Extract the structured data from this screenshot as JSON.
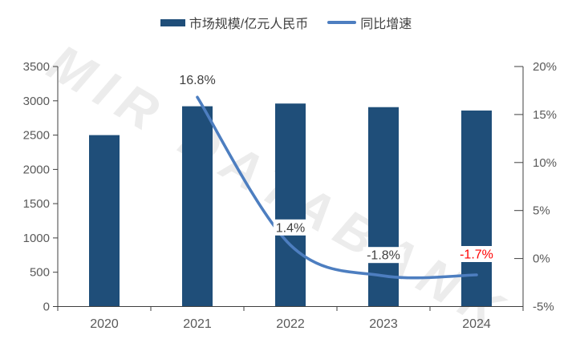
{
  "legend": {
    "bar_label": "市场规模/亿元人民币",
    "line_label": "同比增速"
  },
  "watermark": {
    "text": "MIR DATABANK"
  },
  "colors": {
    "bar": "#1F4E79",
    "line": "#4D7EC0",
    "axis_line": "#3F3F3F",
    "tick_label": "#595959",
    "data_label": "#404040",
    "negative_2024_label": "#FF0000",
    "label_background": "#FFFFFF"
  },
  "chart_data": {
    "type": "bar",
    "subtype": "bar-line-combo",
    "title": "",
    "categories": [
      "2020",
      "2021",
      "2022",
      "2023",
      "2024"
    ],
    "series": [
      {
        "name": "市场规模/亿元人民币",
        "type": "bar",
        "axis": "left",
        "values": [
          2500,
          2920,
          2960,
          2908,
          2858
        ],
        "color": "#1F4E79"
      },
      {
        "name": "同比增速",
        "type": "line",
        "axis": "right",
        "smooth": true,
        "values": [
          null,
          16.8,
          1.4,
          -1.8,
          -1.7
        ],
        "data_labels": [
          null,
          "16.8%",
          "1.4%",
          "-1.8%",
          "-1.7%"
        ],
        "data_label_colors": [
          null,
          "#404040",
          "#404040",
          "#404040",
          "#FF0000"
        ],
        "color": "#4D7EC0"
      }
    ],
    "left_axis": {
      "min": 0,
      "max": 3500,
      "step": 500,
      "tick_labels": [
        "0",
        "500",
        "1000",
        "1500",
        "2000",
        "2500",
        "3000",
        "3500"
      ]
    },
    "right_axis": {
      "min": -5,
      "max": 20,
      "step": 5,
      "tick_labels": [
        "-5%",
        "0%",
        "5%",
        "10%",
        "15%",
        "20%"
      ]
    },
    "legend_position": "top",
    "grid": false,
    "watermark": "MIR DATABANK"
  }
}
